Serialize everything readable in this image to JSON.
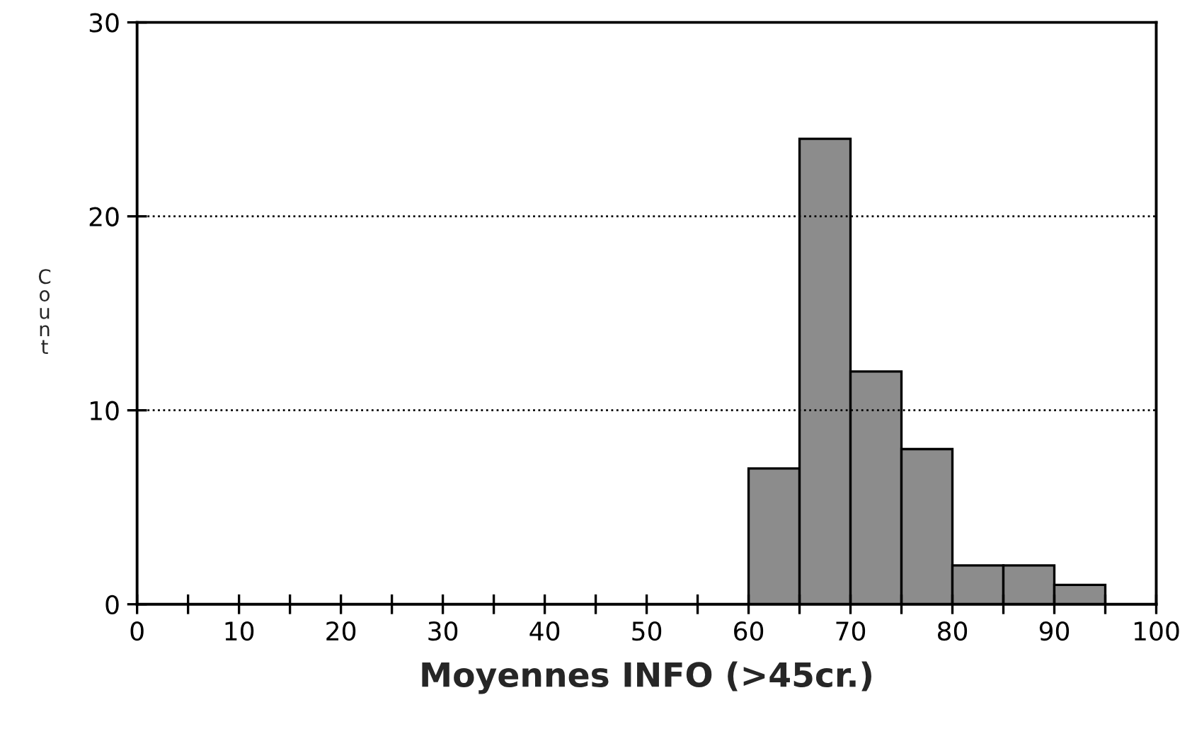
{
  "chart_data": {
    "type": "histogram",
    "xlabel": "Moyennes INFO (>45cr.)",
    "ylabel": "Count",
    "bins": [
      60,
      65,
      70,
      75,
      80,
      85,
      90,
      95
    ],
    "values": [
      7,
      24,
      12,
      8,
      2,
      2,
      1
    ],
    "color": "#8c8c8c",
    "xlim": [
      0,
      100
    ],
    "ylim": [
      0,
      30
    ],
    "xticks": [
      0,
      {
        "value": 5,
        "label": null
      },
      10,
      {
        "value": 15,
        "label": null
      },
      20,
      {
        "value": 25,
        "label": null
      },
      30,
      {
        "value": 35,
        "label": null
      },
      40,
      {
        "value": 45,
        "label": null
      },
      50,
      {
        "value": 55,
        "label": null
      },
      60,
      {
        "value": 65,
        "label": null
      },
      70,
      {
        "value": 75,
        "label": null
      },
      80,
      {
        "value": 85,
        "label": null
      },
      90,
      {
        "value": 95,
        "label": null
      },
      100
    ],
    "yticks": [
      0,
      10,
      20,
      30
    ],
    "grid": "y",
    "line_style": "dotted"
  }
}
